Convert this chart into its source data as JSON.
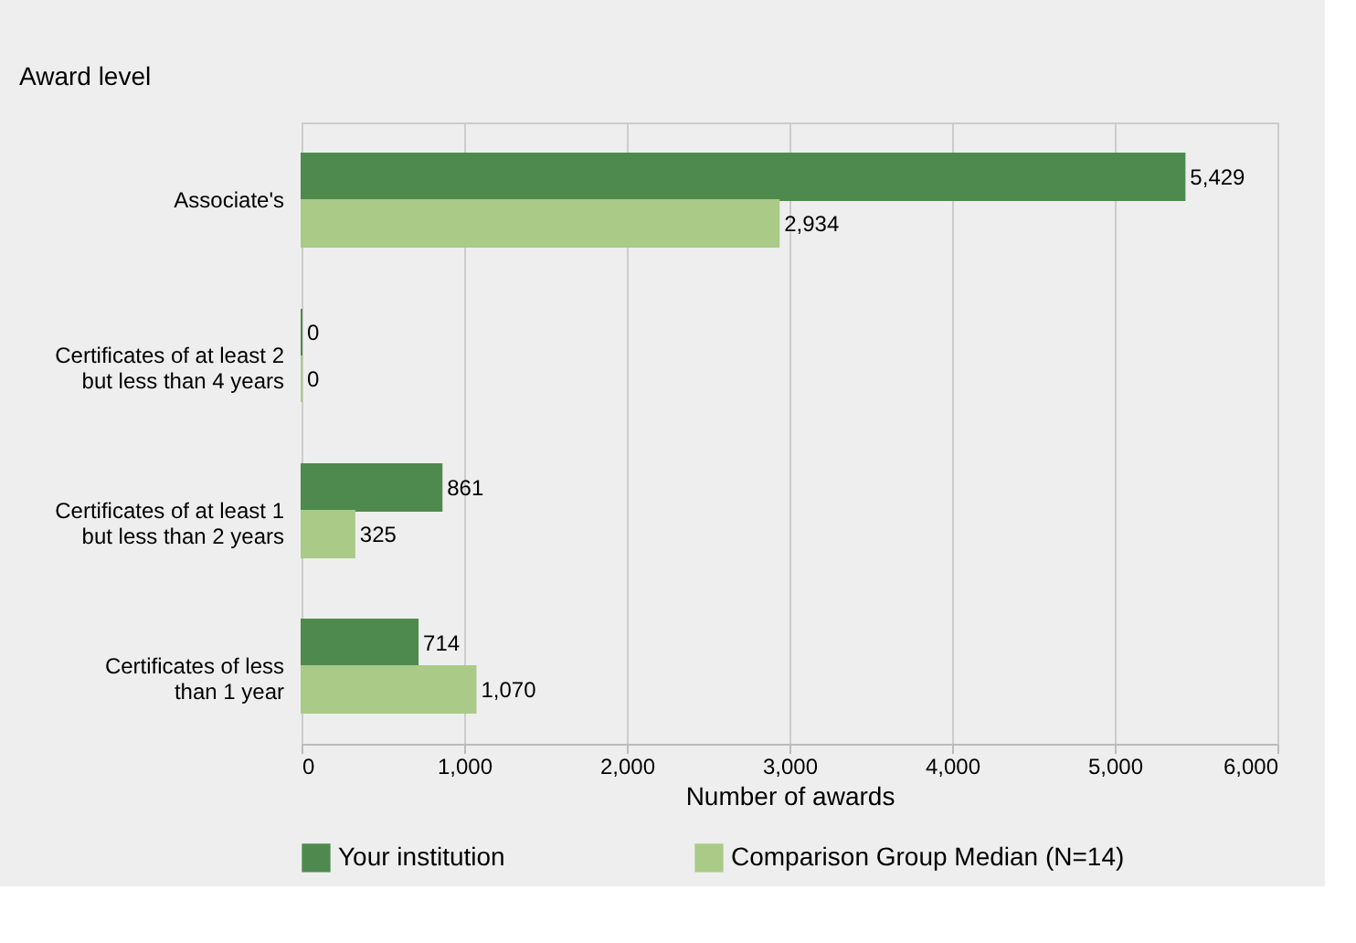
{
  "chart_data": {
    "type": "bar",
    "orientation": "horizontal",
    "ylabel": "Award level",
    "xlabel": "Number of awards",
    "categories": [
      "Associate's",
      "Certificates of at least 2\nbut less than 4 years",
      "Certificates of at least 1\nbut  less than 2 years",
      "Certificates of less\nthan 1 year"
    ],
    "series": [
      {
        "name": "Your institution",
        "color": "#4e8a4e",
        "values": [
          5429,
          0,
          861,
          714
        ],
        "value_labels": [
          "5,429",
          "0",
          "861",
          "714"
        ]
      },
      {
        "name": "Comparison Group Median (N=14)",
        "color": "#a9cb87",
        "values": [
          2934,
          0,
          325,
          1070
        ],
        "value_labels": [
          "2,934",
          "0",
          "325",
          "1,070"
        ]
      }
    ],
    "xlim": [
      0,
      6000
    ],
    "xticks": [
      {
        "value": 0,
        "label": "0"
      },
      {
        "value": 1000,
        "label": "1,000"
      },
      {
        "value": 2000,
        "label": "2,000"
      },
      {
        "value": 3000,
        "label": "3,000"
      },
      {
        "value": 4000,
        "label": "4,000"
      },
      {
        "value": 5000,
        "label": "5,000"
      },
      {
        "value": 6000,
        "label": "6,000"
      }
    ],
    "grid": "x",
    "legend": "bottom"
  }
}
